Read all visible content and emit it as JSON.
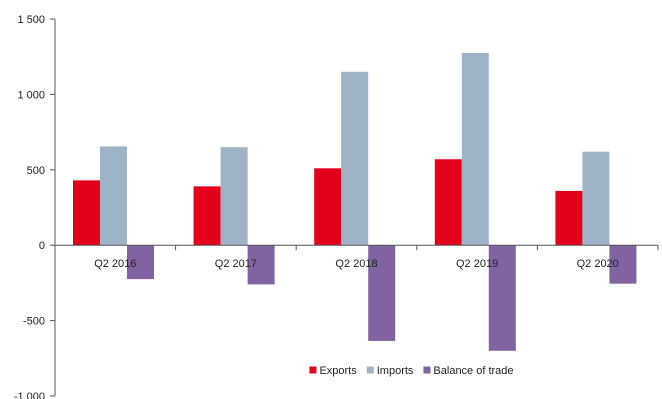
{
  "chart_data": {
    "type": "bar",
    "title": "",
    "xlabel": "",
    "ylabel": "",
    "categories": [
      "Q2 2016",
      "Q2 2017",
      "Q2 2018",
      "Q2 2019",
      "Q2 2020"
    ],
    "series": [
      {
        "name": "Exports",
        "color": "#e3001b",
        "values": [
          430,
          390,
          510,
          570,
          360
        ]
      },
      {
        "name": "Imports",
        "color": "#9eb4c6",
        "values": [
          655,
          650,
          1150,
          1275,
          620
        ]
      },
      {
        "name": "Balance of trade",
        "color": "#8064a2",
        "values": [
          -225,
          -260,
          -635,
          -700,
          -255
        ]
      }
    ],
    "ylim": [
      -1000,
      1500
    ],
    "yticks": [
      -1000,
      -500,
      0,
      500,
      1000,
      1500
    ],
    "ytick_labels": [
      "-1 000",
      "-500",
      "0",
      "500",
      "1 000",
      "1 500"
    ],
    "grid": false,
    "legend_position": "bottom-center"
  }
}
